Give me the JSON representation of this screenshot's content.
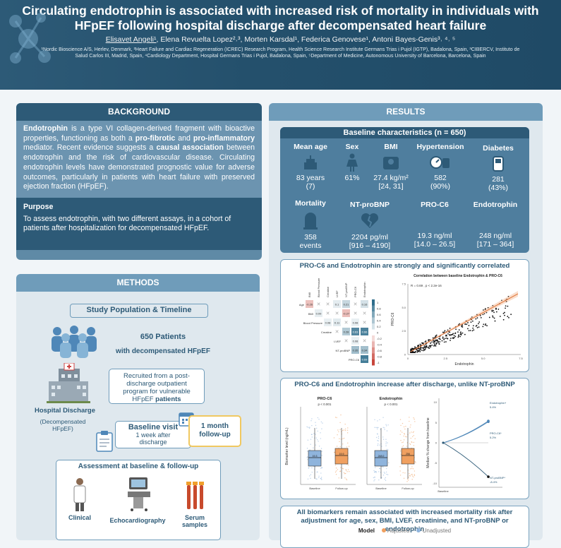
{
  "header": {
    "title": "Circulating endotrophin is associated with increased risk of mortality in individuals with HFpEF following hospital discharge after decompensated heart failure",
    "authors_first": "Elisavet Angeli¹",
    "authors_rest": ", Elena Revuelta Lopez²˒³, Morten Karsdal¹, Federica Genovese¹, Antoni Bayes-Genis³˒ ⁴˒ ⁵",
    "affiliations": "¹Nordic Bioscience A/S, Herlev, Denmark, ²Heart Failure and Cardiac Regeneration (ICREC) Research Program, Health Science Research Institute Germans Trias i Pujol (IGTP), Badalona, Spain, ³CIBERCV, Instituto de Salud Carlos III, Madrid, Spain, ⁴Cardiology Department, Hospital Germans Trias i Pujol, Badalona, Spain, ⁵Department of Medicine, Autonomous University of Barcelona, Barcelona, Spain"
  },
  "background": {
    "heading": "BACKGROUND",
    "p1": "Endotrophin",
    "p2": " is a type VI collagen-derived fragment with bioactive properties, functioning as both a ",
    "p3": "pro-fibrotic",
    "p4": " and ",
    "p5": "pro-inflammatory",
    "p6": " mediator. Recent evidence suggests a ",
    "p7": "causal association",
    "p8": " between endotrophin and the risk of cardiovascular disease. Circulating endotrophin levels have demonstrated prognostic value for adverse outcomes, particularly in patients with heart failure with preserved ejection fraction (HFpEF).",
    "purpose_heading": "Purpose",
    "purpose": "To assess endotrophin, with two different assays, in a cohort of patients after hospitalization for decompensated HFpEF."
  },
  "methods": {
    "heading": "METHODS",
    "study": "Study Population & Timeline",
    "patients": "650 Patients",
    "with": "with decompensated HFpEF",
    "recruited": "Recruited from a post-discharge outpatient program for vulnerable HFpEF ",
    "patients_word": "patients",
    "hospital": "Hospital Discharge",
    "decomp": "(Decompensated HFpEF)",
    "baseline_visit": "Baseline visit",
    "week": "1 week after discharge",
    "month": "1 month follow-up",
    "assessment": "Assessment at baseline & follow-up",
    "clinical": "Clinical",
    "echo": "Echocardiography",
    "serum": "Serum samples"
  },
  "results": {
    "heading": "RESULTS",
    "baseline_title": "Baseline characteristics (n = 650)",
    "cells": [
      {
        "label": "Mean age",
        "v1": "83 years",
        "v2": "(7)",
        "icon": "cake-icon"
      },
      {
        "label": "Sex",
        "v1": "61%",
        "v2": "",
        "icon": "female-icon"
      },
      {
        "label": "BMI",
        "v1": "27.4 kg/m²",
        "v2": "[24, 31]",
        "icon": "scale-icon"
      },
      {
        "label": "Hypertension",
        "v1": "582",
        "v2": "(90%)",
        "icon": "bp-cuff-icon"
      },
      {
        "label": "Diabetes",
        "v1": "281",
        "v2": "(43%)",
        "icon": "glucometer-icon"
      },
      {
        "label": "Mortality",
        "v1": "358",
        "v2": "events",
        "icon": "tombstone-icon"
      },
      {
        "label": "NT-proBNP",
        "v1": "2204 pg/ml",
        "v2": "[916 – 4190]",
        "icon": "broken-heart-icon"
      },
      {
        "label": "PRO-C6",
        "v1": "19.3 ng/ml",
        "v2": "[14.0 – 26.5]",
        "icon": ""
      },
      {
        "label": "Endotrophin",
        "v1": "248 ng/ml",
        "v2": "[171 – 364]",
        "icon": ""
      }
    ],
    "corr_title": "PRO-C6 and Endotrophin are strongly and significantly correlated",
    "scatter_title": "Correlation between baseline Endotrophin & PRO-C6",
    "scatter_stat": "R = 0.69 , p < 2.2e-16",
    "scatter_xlabel": "Endotrophin",
    "scatter_ylabel": "PRO-C6",
    "increase_title": "PRO-C6 and Endotrophin increase after discharge, unlike NT-proBNP",
    "box_ylabel": "Biomarker level (ng/mL)",
    "line_ylabel": "Median % change from baseline",
    "mort_title": "All biomarkers remain associated with increased mortality risk after adjustment for age, sex, BMI, LVEF, creatinine, and NT-proBNP or endotrophin",
    "legend_title": "Model",
    "legend_adj": "Adjusted",
    "legend_unadj": "Unadjusted"
  },
  "chart_data": [
    {
      "type": "heatmap",
      "title": "",
      "rows": [
        "Age",
        "BMI",
        "Blood Pressure",
        "Creatine",
        "LVEF",
        "NT-proBNP",
        "PRO-C6"
      ],
      "cols": [
        "BMI",
        "Blood Pressure",
        "Creatine",
        "LVEF",
        "NT-proBNP",
        "PRO-C6",
        "Endotrophin"
      ],
      "cells": [
        [
          "-0.26",
          "x",
          "x",
          "0.1",
          "0.21",
          "x",
          "0.16"
        ],
        [
          "",
          "0.09",
          "x",
          "x",
          "-0.27",
          "x",
          "x"
        ],
        [
          "",
          "",
          "0.08",
          "0.11",
          "x",
          "0.08",
          "x"
        ],
        [
          "",
          "",
          "",
          "x",
          "0.28",
          "0.63",
          "0.66"
        ],
        [
          "",
          "",
          "",
          "",
          "x",
          "0.08",
          "x"
        ],
        [
          "",
          "",
          "",
          "",
          "",
          "0.35",
          "0.34"
        ],
        [
          "",
          "",
          "",
          "",
          "",
          "",
          "0.69"
        ]
      ],
      "scale": [
        "1",
        "0.8",
        "0.6",
        "0.4",
        "0.2",
        "0",
        "-0.2",
        "-0.4",
        "-0.6",
        "-0.8",
        "-1"
      ]
    },
    {
      "type": "scatter",
      "title": "Correlation between baseline Endotrophin & PRO-C6",
      "xlabel": "Endotrophin",
      "ylabel": "PRO-C6",
      "x_ticks": [
        "0",
        "2.5",
        "5.0",
        "7.5"
      ],
      "y_ticks": [
        "0",
        "2.5",
        "5.0",
        "7.5"
      ],
      "r": 0.69
    },
    {
      "type": "box",
      "series": [
        {
          "name": "PRO-C6",
          "p": "p < 0.001",
          "categories": [
            "Baseline",
            "Follow-up"
          ],
          "medians": [
            "19.3",
            "19.9"
          ]
        },
        {
          "name": "Endotrophin",
          "p": "p < 0.001",
          "categories": [
            "Baseline",
            "Follow-up"
          ],
          "medians": [
            "248.0",
            "256"
          ]
        }
      ]
    },
    {
      "type": "line",
      "x": [
        "Baseline",
        ""
      ],
      "series": [
        {
          "name": "Endotrophin*",
          "label": "5.4%",
          "end": 5.4
        },
        {
          "name": "PRO-C6*",
          "label": "5.2%",
          "end": 5.2
        },
        {
          "name": "NT-proBNP*",
          "label": "-8.4%",
          "end": -8.4
        }
      ],
      "y_ticks": [
        "10",
        "5",
        "0",
        "-5",
        "-10"
      ]
    }
  ]
}
